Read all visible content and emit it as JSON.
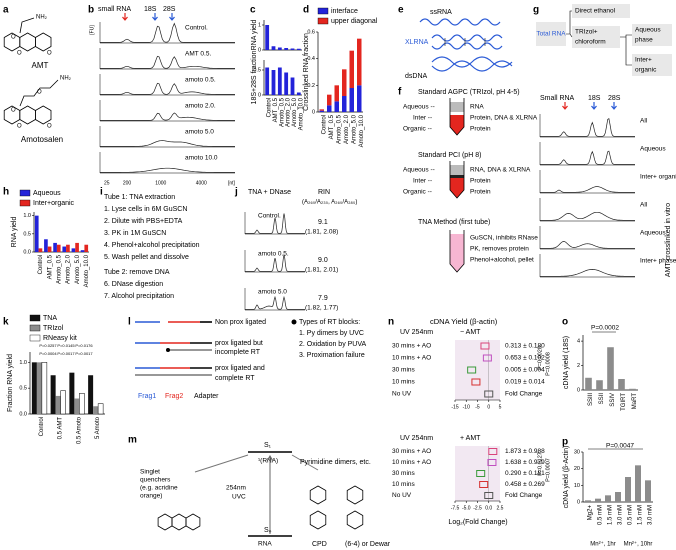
{
  "a": {
    "label": "a",
    "molecules": [
      "AMT",
      "Amotosalen"
    ],
    "atoms": {
      "amt": [
        "NH₂",
        "O",
        "O",
        "O"
      ],
      "amotosalen": [
        "O",
        "NH₂",
        "O",
        "O",
        "O"
      ]
    }
  },
  "b": {
    "label": "b",
    "markers": [
      "small RNA",
      "18S",
      "28S"
    ],
    "traces": [
      "Control.",
      "AMT 0.5.",
      "amoto 0.5.",
      "amoto 2.0.",
      "amoto 5.0",
      "amoto 10.0"
    ],
    "y_unit": "[FU]",
    "x_ticks": [
      25,
      200,
      1000,
      4000
    ],
    "x_unit": "[nt]"
  },
  "c": {
    "label": "c",
    "charts": [
      {
        "type": "bar",
        "y_label": "RNA yield",
        "values": [
          1.0,
          0.15,
          0.1,
          0.08,
          0.06,
          0.05
        ],
        "color": "#2323d9",
        "ylim": [
          0,
          1.2
        ],
        "yticks": [
          0,
          1
        ]
      },
      {
        "type": "bar",
        "y_label": "18S+28S fraction",
        "categories": [
          "Control",
          "AMT_0.5",
          "Amoto_0.5",
          "Amoto_2.0",
          "Amoto_5.0",
          "Amoto_10.0"
        ],
        "values": [
          0.55,
          0.5,
          0.55,
          0.45,
          0.35,
          0.05
        ],
        "color": "#2323d9",
        "ylim": [
          0,
          0.7
        ],
        "yticks": [
          0,
          0.5
        ]
      }
    ]
  },
  "d": {
    "label": "d",
    "chart": {
      "type": "stacked_bar",
      "y_label": "Crosslinked RNA fraction",
      "categories": [
        "Control",
        "AMT_0.5",
        "Amoto_0.5",
        "Amoto_2.0",
        "Amoto_5.0",
        "Amoto_10.0"
      ],
      "series": [
        {
          "name": "interface",
          "color": "#2323d9",
          "values": [
            0.01,
            0.05,
            0.08,
            0.12,
            0.18,
            0.2
          ]
        },
        {
          "name": "upper diagonal",
          "color": "#e3261f",
          "values": [
            0.01,
            0.08,
            0.12,
            0.2,
            0.28,
            0.35
          ]
        }
      ],
      "ylim": [
        0,
        0.6
      ],
      "yticks": [
        0,
        0.2,
        0.4,
        0.6
      ]
    }
  },
  "e": {
    "label": "e",
    "molecules": [
      "ssRNA",
      "XLRNA",
      "dsDNA"
    ]
  },
  "f": {
    "label": "f",
    "phase_labels": [
      "Aqueous --",
      "Inter --",
      "Organic --"
    ],
    "agpc": {
      "title": "Standard AGPC (TRIzol, pH 4-5)",
      "contents": [
        "RNA",
        "Protein, DNA & XLRNA",
        "Protein"
      ]
    },
    "pci": {
      "title": "Standard PCI (pH 8)",
      "contents": [
        "RNA, DNA & XLRNA",
        "Protein",
        "Protein"
      ]
    },
    "tna": {
      "title": "TNA Method (first tube)",
      "steps": [
        "GuSCN, inhibits RNase",
        "PK, removes protein",
        "Phenol+alcohol, pellet"
      ]
    }
  },
  "g": {
    "label": "g",
    "source": "Total RNA",
    "direct": "Direct ethanol",
    "trizol": [
      "TRIzol+",
      "chloroform"
    ],
    "aqueous": [
      "Aqueous",
      "phase"
    ],
    "inter": [
      "Inter+",
      "organic"
    ],
    "markers": [
      "Small RNA",
      "18S",
      "28S"
    ],
    "traces": [
      "All",
      "Aqueous",
      "Inter+ organic",
      "All",
      "Aqueous",
      "Inter+ phase"
    ],
    "side_label": "AMT crosslinked in vitro"
  },
  "h": {
    "label": "h",
    "chart": {
      "type": "grouped_bar",
      "y_label": "RNA yield",
      "categories": [
        "Control",
        "AMT_0.5",
        "Amoto_0.5",
        "Amoto_2.0",
        "Amoto_5.0",
        "Amoto_10.0"
      ],
      "series": [
        {
          "name": "Aqueous",
          "color": "#2323d9",
          "values": [
            1.0,
            0.35,
            0.25,
            0.15,
            0.1,
            0.05
          ]
        },
        {
          "name": "Inter+organic",
          "color": "#e3261f",
          "values": [
            0.1,
            0.15,
            0.2,
            0.2,
            0.25,
            0.2
          ]
        }
      ],
      "ylim": [
        0,
        1.1
      ],
      "yticks": [
        {
          "value": 0,
          "label": "0.0"
        },
        {
          "value": 0.5,
          "label": "0.5"
        },
        {
          "value": 1,
          "label": "1.0"
        }
      ]
    }
  },
  "i": {
    "label": "i",
    "lines": [
      "Tube 1: TNA extraction",
      "1. Lyse cells in 6M GuSCN",
      "2. Dilute with PBS+EDTA",
      "3. PK in 1M GuSCN",
      "4. Phenol+alcohol precipitation",
      "5. Wash pellet and dissolve",
      "Tube 2: remove DNA",
      "6. DNase digestion",
      "7. Alcohol precipitation"
    ]
  },
  "j": {
    "label": "j",
    "title": "TNA + DNase",
    "rin_header": "RIN",
    "ratio_header": "(A₂₆₀/A₂₃₀, A₂₆₀/A₂₈₀)",
    "samples": [
      {
        "name": "Control.",
        "rin": "9.1",
        "ratios": "(1.81, 2.08)"
      },
      {
        "name": "amoto 0.5.",
        "rin": "9.0",
        "ratios": "(1.81, 2.01)"
      },
      {
        "name": "amoto 5.0",
        "rin": "7.9",
        "ratios": "(1.82, 1.77)"
      }
    ]
  },
  "k": {
    "label": "k",
    "chart": {
      "type": "grouped_bar",
      "y_label": "Fraction RNA yield",
      "categories": [
        "Control",
        "0.5 AMT",
        "0.5 Amoto",
        "5 Amoto"
      ],
      "series": [
        {
          "name": "TNA",
          "color": "#111111",
          "values": [
            1.0,
            0.75,
            0.8,
            0.75
          ]
        },
        {
          "name": "TRIzol",
          "color": "#8c8c8c",
          "values": [
            1.0,
            0.35,
            0.3,
            0.15
          ]
        },
        {
          "name": "RNeasy kit",
          "color": "#ffffff",
          "values": [
            1.0,
            0.45,
            0.4,
            0.2
          ]
        }
      ],
      "ylim": [
        0,
        1.2
      ],
      "yticks": [
        {
          "value": 0,
          "label": "0.0"
        },
        {
          "value": 0.5,
          "label": "0.5"
        },
        {
          "value": 1,
          "label": "1.0"
        }
      ],
      "p_values": [
        "P=0.0257",
        "P=0.0145",
        "P=0.0176",
        "P=0.0004",
        "P=0.0017",
        "P=0.0017"
      ]
    }
  },
  "l": {
    "label": "l",
    "rows": [
      "Non prox ligated",
      [
        "prox ligated but",
        "incomplete RT"
      ],
      [
        "prox ligated and",
        "complete RT"
      ]
    ],
    "parts": [
      "Frag1",
      "Frag2",
      "Adapter"
    ],
    "blocks_title": "Types of RT blocks:",
    "blocks": [
      "1. Py dimers by UVC",
      "2. Oxidation by PUVA",
      "3. Proximation failure"
    ]
  },
  "m": {
    "label": "m",
    "s1": "S₁",
    "s1_state": "¹(RNA)",
    "s0": "S₀",
    "s0_state": "RNA",
    "uv": [
      "254nm",
      "UVC"
    ],
    "quenchers": [
      "Singlet",
      "quenchers",
      "(e.g. acridine",
      "orange)"
    ],
    "products": "Pyrimidine dimers, etc.",
    "cpd": "CPD",
    "dewar": "(6-4) or Dewar"
  },
  "n": {
    "label": "n",
    "title": "cDNA Yield (β-actin)",
    "x_label": "Log₂(Fold Change)",
    "fold_header": "Fold Change",
    "charts": [
      {
        "type": "box",
        "uv": "UV 254nm",
        "condition": "− AMT",
        "categories": [
          "30 mins + AO",
          "10 mins + AO",
          "30 mins",
          "10 mins",
          "No UV"
        ],
        "values": [
          -1.68,
          -0.61,
          -7.6,
          -5.7,
          0
        ],
        "colors": [
          "#d9447a",
          "#c04fc0",
          "#3a9a3a",
          "#d63030",
          "#555555"
        ],
        "fold_changes": [
          "0.313 ± 0.180",
          "0.653 ± 0.102",
          "0.005 ± 0.004",
          "0.019 ± 0.014"
        ],
        "xlim": [
          -15,
          5
        ],
        "xticks": [
          -15,
          -10,
          -5,
          0,
          5
        ],
        "p_values": [
          "P=0.0020",
          "P=0.0008"
        ]
      },
      {
        "type": "box",
        "uv": "UV 254nm",
        "condition": "+ AMT",
        "categories": [
          "30 mins + AO",
          "10 mins + AO",
          "30 mins",
          "10 mins",
          "No UV"
        ],
        "values": [
          0.9,
          0.71,
          -1.79,
          -1.13,
          0
        ],
        "colors": [
          "#d9447a",
          "#c04fc0",
          "#3a9a3a",
          "#d63030",
          "#555555"
        ],
        "fold_changes": [
          "1.873 ± 0.988",
          "1.638 ± 0.979",
          "0.290 ± 0.181",
          "0.458 ± 0.269"
        ],
        "xlim": [
          -7.5,
          2.5
        ],
        "xticks": [
          -7.5,
          {
            "value": -5,
            "label": "-5.0"
          },
          -2.5,
          {
            "value": 0,
            "label": "0.0"
          },
          2.5
        ],
        "p_values": [
          "P=0.0127",
          "P=0.0007"
        ]
      }
    ]
  },
  "o": {
    "label": "o",
    "chart": {
      "type": "bar",
      "y_label": "cDNA yield (18S)",
      "p_value": "P=0.0002",
      "categories": [
        "SSIII",
        "SSII",
        "SSIV",
        "TGIRT",
        "MaRT"
      ],
      "values": [
        1.0,
        0.8,
        3.5,
        0.9,
        0.1
      ],
      "color": "#8c8c8c",
      "ylim": [
        0,
        4.5
      ],
      "yticks": [
        0,
        2,
        4
      ]
    }
  },
  "p": {
    "label": "p",
    "chart": {
      "type": "bar",
      "y_label": "cDNA yield (β-Actin)",
      "p_value": "P=0.0047",
      "categories": [
        "Mg2+",
        "0.5 mM",
        "1.5 mM",
        "3.0 mM",
        "0.5 mM",
        "1.5 mM",
        "3.0 mM"
      ],
      "groups": [
        "Mn²⁺, 1hr",
        "Mn²⁺, 10hr"
      ],
      "values": [
        1,
        2,
        4,
        6,
        15,
        22,
        13
      ],
      "color": "#8c8c8c",
      "ylim": [
        0,
        30
      ],
      "yticks": [
        0,
        10,
        20,
        30
      ]
    }
  }
}
